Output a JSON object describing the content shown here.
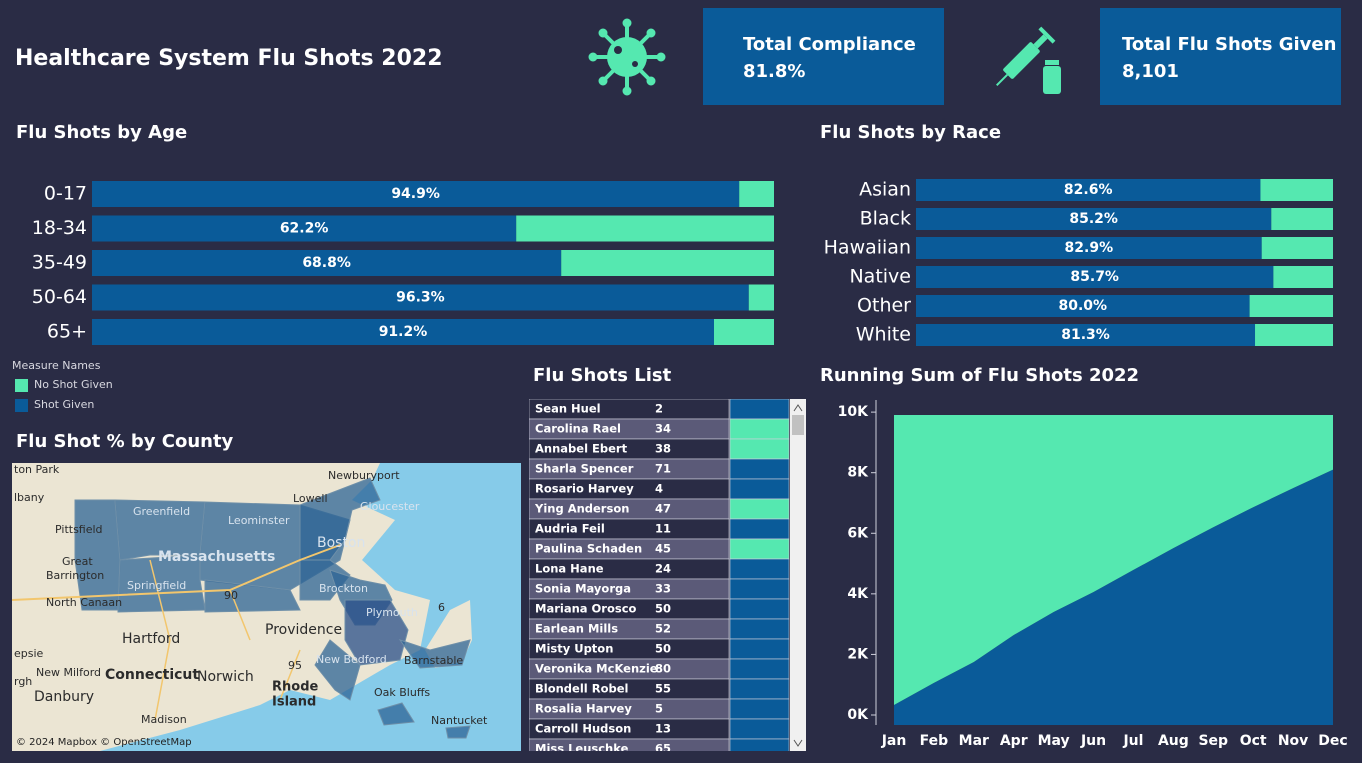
{
  "header": {
    "title": "Healthcare System Flu Shots 2022"
  },
  "kpis": [
    {
      "label": "Total Compliance",
      "value": "81.8%"
    },
    {
      "label": "Total Flu Shots Given",
      "value": "8,101"
    }
  ],
  "legend": {
    "title": "Measure Names"
  },
  "chart_data": [
    {
      "type": "hbar",
      "title": "Flu Shots by Age",
      "categories": [
        "0-17",
        "18-34",
        "35-49",
        "50-64",
        "65+"
      ],
      "series": [
        {
          "name": "Shot Given",
          "color": "#0a5b99",
          "values": [
            94.9,
            62.2,
            68.8,
            96.3,
            91.2
          ],
          "value_labels": [
            "94.9%",
            "62.2%",
            "68.8%",
            "96.3%",
            "91.2%"
          ]
        },
        {
          "name": "No Shot Given",
          "color": "#55e8b0",
          "values": [
            5.1,
            37.8,
            31.2,
            3.7,
            8.8
          ]
        }
      ],
      "xlim": [
        0,
        100
      ]
    },
    {
      "type": "hbar",
      "title": "Flu Shots by Race",
      "categories": [
        "Asian",
        "Black",
        "Hawaiian",
        "Native",
        "Other",
        "White"
      ],
      "series": [
        {
          "name": "Shot Given",
          "color": "#0a5b99",
          "values": [
            82.6,
            85.2,
            82.9,
            85.7,
            80.0,
            81.3
          ],
          "value_labels": [
            "82.6%",
            "85.2%",
            "82.9%",
            "85.7%",
            "80.0%",
            "81.3%"
          ]
        },
        {
          "name": "No Shot Given",
          "color": "#55e8b0",
          "values": [
            17.4,
            14.8,
            17.1,
            14.3,
            20.0,
            18.7
          ]
        }
      ],
      "xlim": [
        0,
        100
      ]
    },
    {
      "type": "area",
      "title": "Running Sum of Flu Shots 2022",
      "categories": [
        "Jan",
        "Feb",
        "Mar",
        "Apr",
        "May",
        "Jun",
        "Jul",
        "Aug",
        "Sep",
        "Oct",
        "Nov",
        "Dec"
      ],
      "series": [
        {
          "name": "Shot Given",
          "color": "#0a5b99",
          "values": [
            330,
            1060,
            1750,
            2640,
            3400,
            4060,
            4790,
            5510,
            6200,
            6860,
            7490,
            8101
          ]
        },
        {
          "name": "No Shot Given",
          "color": "#55e8b0",
          "values": [
            9573,
            8843,
            8153,
            7263,
            6503,
            5843,
            5113,
            4393,
            3703,
            3043,
            2413,
            1802
          ]
        }
      ],
      "ylim": [
        -330,
        10400
      ],
      "yticks": [
        {
          "value": 0,
          "label": "0K"
        },
        {
          "value": 2000,
          "label": "2K"
        },
        {
          "value": 4000,
          "label": "4K"
        },
        {
          "value": 6000,
          "label": "6K"
        },
        {
          "value": 8000,
          "label": "8K"
        },
        {
          "value": 10000,
          "label": "10K"
        }
      ]
    }
  ],
  "map": {
    "title": "Flu Shot % by County",
    "labels": [
      "ton Park",
      "lbany",
      "Newburyport",
      "Lowell",
      "Gloucester",
      "Greenfield",
      "Leominster",
      "Pittsfield",
      "Massachusetts",
      "Boston",
      "Great",
      "Barrington",
      "Springfield",
      "North Canaan",
      "Brockton",
      "Plymouth",
      "Hartford",
      "Providence",
      "epsie",
      "New Bedford",
      "Barnstable",
      "New Milford",
      "Connecticut",
      "Norwich",
      "Rhode",
      "Island",
      "rgh",
      "Danbury",
      "Oak Bluffs",
      "Madison",
      "Nantucket",
      "90",
      "95",
      "6"
    ],
    "attribution": "© 2024 Mapbox © OpenStreetMap"
  },
  "table": {
    "title": "Flu Shots List",
    "rows": [
      {
        "name": "Sean Huel",
        "value": "2",
        "color": "#0a5b99"
      },
      {
        "name": "Carolina Rael",
        "value": "34",
        "color": "#55e8b0"
      },
      {
        "name": "Annabel Ebert",
        "value": "38",
        "color": "#55e8b0"
      },
      {
        "name": "Sharla Spencer",
        "value": "71",
        "color": "#0a5b99"
      },
      {
        "name": "Rosario Harvey",
        "value": "4",
        "color": "#0a5b99"
      },
      {
        "name": "Ying Anderson",
        "value": "47",
        "color": "#55e8b0"
      },
      {
        "name": "Audria Feil",
        "value": "11",
        "color": "#0a5b99"
      },
      {
        "name": "Paulina Schaden",
        "value": "45",
        "color": "#55e8b0"
      },
      {
        "name": "Lona Hane",
        "value": "24",
        "color": "#0a5b99"
      },
      {
        "name": "Sonia Mayorga",
        "value": "33",
        "color": "#0a5b99"
      },
      {
        "name": "Mariana Orosco",
        "value": "50",
        "color": "#0a5b99"
      },
      {
        "name": "Earlean Mills",
        "value": "52",
        "color": "#0a5b99"
      },
      {
        "name": "Misty Upton",
        "value": "50",
        "color": "#0a5b99"
      },
      {
        "name": "Veronika McKenzie",
        "value": "80",
        "color": "#0a5b99"
      },
      {
        "name": "Blondell Robel",
        "value": "55",
        "color": "#0a5b99"
      },
      {
        "name": "Rosalia Harvey",
        "value": "5",
        "color": "#0a5b99"
      },
      {
        "name": "Carroll Hudson",
        "value": "13",
        "color": "#0a5b99"
      },
      {
        "name": "Miss Leuschke",
        "value": "65",
        "color": "#0a5b99"
      }
    ]
  }
}
